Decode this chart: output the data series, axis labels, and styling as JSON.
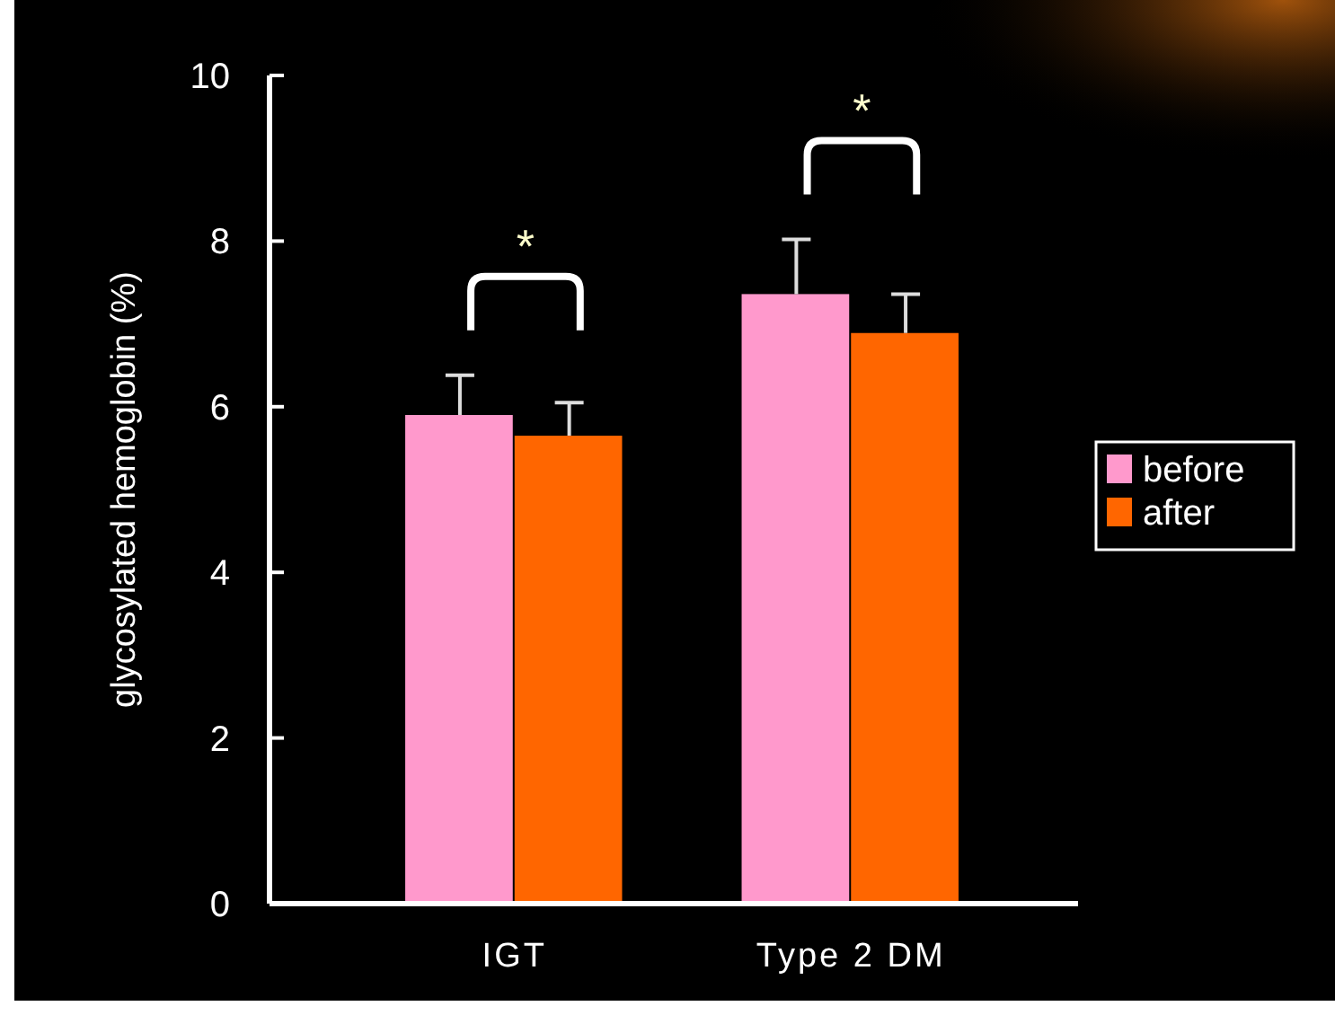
{
  "chart_data": {
    "type": "bar",
    "ylabel": "glycosylated hemoglobin (%)",
    "categories": [
      "IGT",
      "Type 2 DM"
    ],
    "series": [
      {
        "name": "before",
        "color": "#ff99cc",
        "values": [
          5.9,
          7.36
        ],
        "errors": [
          [
            5.9,
            6.38
          ],
          [
            7.36,
            8.02
          ]
        ]
      },
      {
        "name": "after",
        "color": "#ff6600",
        "values": [
          5.65,
          6.89
        ],
        "errors": [
          [
            5.65,
            6.05
          ],
          [
            6.89,
            7.36
          ]
        ]
      }
    ],
    "ylim": [
      0,
      10
    ],
    "yticks": [
      0,
      2,
      4,
      6,
      8,
      10
    ],
    "legend": "right",
    "annotations": [
      "*",
      "*"
    ]
  }
}
